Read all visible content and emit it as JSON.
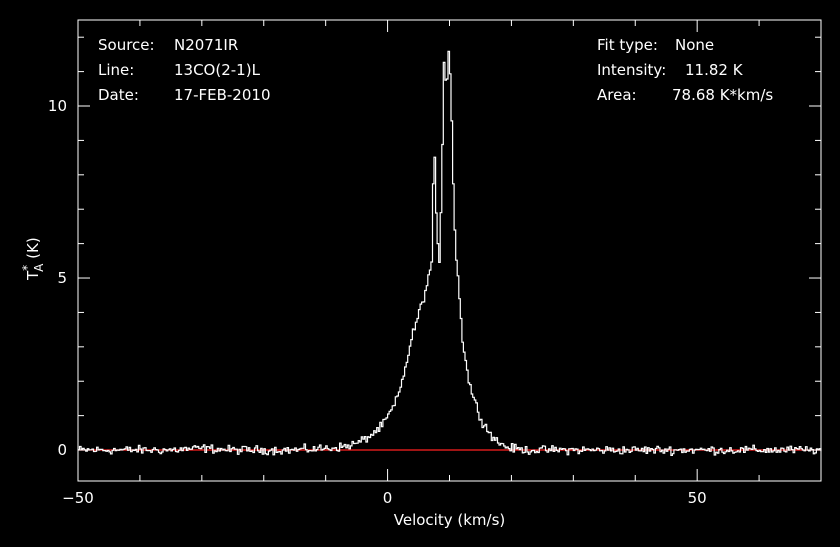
{
  "chart_data": {
    "type": "line",
    "xlabel": "Velocity (km/s)",
    "ylabel": {
      "base": "T",
      "sup": "*",
      "sub": "A",
      "unit": " (K)"
    },
    "xlim": [
      -50,
      70
    ],
    "ylim": [
      -0.9,
      12.5
    ],
    "xticks": [
      -50,
      0,
      50
    ],
    "yticks": [
      0,
      5,
      10
    ],
    "grid": false,
    "info_left": [
      {
        "label": "Source:",
        "value": "N2071IR"
      },
      {
        "label": "Line:",
        "value": "13CO(2-1)L"
      },
      {
        "label": "Date:",
        "value": "17-FEB-2010"
      }
    ],
    "info_right": [
      {
        "label": "Fit type:",
        "value": "None"
      },
      {
        "label": "Intensity:",
        "value": "11.82 K"
      },
      {
        "label": "Area:",
        "value": "78.68 K*km/s"
      }
    ],
    "baseline": {
      "value": 0,
      "color": "#ff2020"
    },
    "line_color": "#ffffff",
    "series": [
      {
        "x": [
          -50,
          -45,
          -40,
          -35,
          -30,
          -25,
          -20,
          -15,
          -10,
          -7,
          -5,
          -3,
          -1,
          0,
          1,
          2,
          3,
          4,
          5,
          6,
          6.5,
          7,
          7.4,
          7.8,
          8.2,
          8.6,
          9,
          9.4,
          9.8,
          10.2,
          10.6,
          11,
          11.5,
          12,
          13,
          14,
          15,
          16,
          17,
          18,
          19,
          20,
          22,
          25,
          30,
          35,
          40,
          45,
          50,
          55,
          60,
          65,
          70
        ],
        "y": [
          0,
          0,
          0,
          0,
          0.05,
          0,
          0,
          0,
          0.05,
          0.1,
          0.2,
          0.4,
          0.7,
          1.0,
          1.3,
          1.8,
          2.6,
          3.4,
          4.0,
          4.6,
          5.0,
          5.5,
          9.0,
          6.5,
          5.3,
          7.5,
          11.3,
          10.5,
          11.82,
          10.0,
          7.0,
          5.5,
          4.5,
          3.2,
          2.0,
          1.4,
          0.9,
          0.6,
          0.35,
          0.2,
          0.1,
          0.05,
          0,
          0,
          0,
          0,
          0,
          0,
          0,
          0,
          0,
          0,
          0
        ]
      }
    ]
  }
}
